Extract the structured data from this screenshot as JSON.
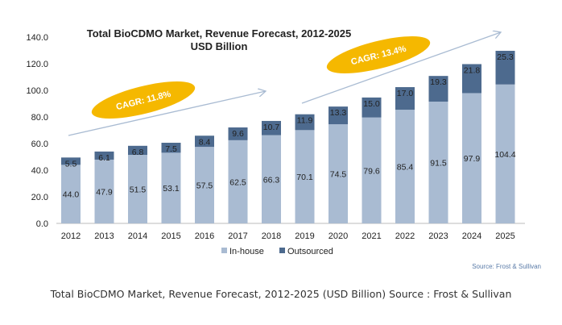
{
  "chart_data": {
    "type": "bar",
    "stacked": true,
    "title": "Total BioCDMO Market, Revenue Forecast, 2012-2025",
    "subtitle": "USD Billion",
    "categories": [
      "2012",
      "2013",
      "2014",
      "2015",
      "2016",
      "2017",
      "2018",
      "2019",
      "2020",
      "2021",
      "2022",
      "2023",
      "2024",
      "2025"
    ],
    "series": [
      {
        "name": "In-house",
        "color": "#a9bbd2",
        "values": [
          44.0,
          47.9,
          51.5,
          53.1,
          57.5,
          62.5,
          66.3,
          70.1,
          74.5,
          79.6,
          85.4,
          91.5,
          97.9,
          104.4
        ]
      },
      {
        "name": "Outsourced",
        "color": "#4d6a8e",
        "values": [
          5.5,
          6.1,
          6.8,
          7.5,
          8.4,
          9.6,
          10.7,
          11.9,
          13.3,
          15.0,
          17.0,
          19.3,
          21.8,
          25.3
        ]
      }
    ],
    "ylim": [
      0,
      140
    ],
    "yticks": [
      "0.0",
      "20.0",
      "40.0",
      "60.0",
      "80.0",
      "100.0",
      "120.0",
      "140.0"
    ],
    "grid": false,
    "legend": "bottom",
    "annotations": [
      {
        "text": "CAGR: 11.8%",
        "from": "2012",
        "to": "2018"
      },
      {
        "text": "CAGR: 13.4%",
        "from": "2019",
        "to": "2025"
      }
    ],
    "annotation_color": "#f5b800",
    "source": "Source: Frost & Sullivan"
  },
  "caption": "Total BioCDMO Market, Revenue Forecast, 2012-2025 (USD Billion) Source : Frost & Sullivan"
}
